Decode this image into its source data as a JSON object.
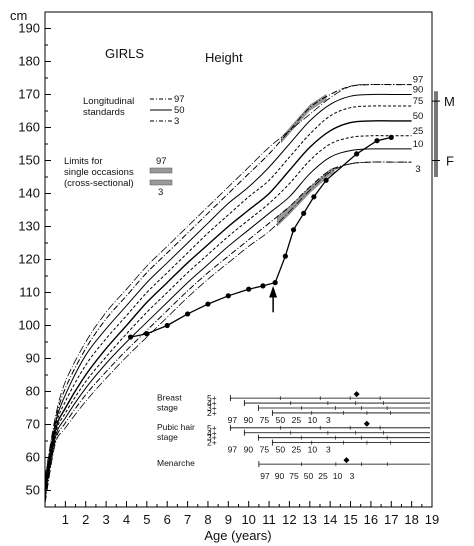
{
  "chart_data": {
    "type": "line",
    "title": "Height",
    "panel_label": "GIRLS",
    "xlabel": "Age (years)",
    "ylabel": "cm",
    "xlim": [
      0,
      19
    ],
    "ylim": [
      45,
      195
    ],
    "x_ticks": [
      1,
      2,
      3,
      4,
      5,
      6,
      7,
      8,
      9,
      10,
      11,
      12,
      13,
      14,
      15,
      16,
      17,
      18,
      19
    ],
    "y_ticks": [
      50,
      60,
      70,
      80,
      90,
      100,
      110,
      120,
      130,
      140,
      150,
      160,
      170,
      180,
      190
    ],
    "grid": false,
    "legend": {
      "longitudinal_label": "Longitudinal standards",
      "longitudinal_lines": [
        "97",
        "50",
        "3"
      ],
      "cross_label": "Limits for single occasions (cross-sectional)",
      "cross_top": "97",
      "cross_bottom": "3"
    },
    "centile_labels": [
      "97",
      "90",
      "75",
      "50",
      "25",
      "10",
      "3"
    ],
    "centiles": [
      {
        "name": "97",
        "x": [
          0,
          0.5,
          1,
          2,
          3,
          4,
          5,
          6,
          7,
          8,
          9,
          10,
          11,
          12,
          13,
          14,
          15,
          16,
          17,
          18
        ],
        "values": [
          53,
          71,
          81,
          93,
          102,
          109,
          116,
          122,
          128,
          134,
          140,
          146,
          152,
          159,
          166,
          170,
          172.5,
          173,
          173,
          173
        ]
      },
      {
        "name": "90",
        "x": [
          0,
          0.5,
          1,
          2,
          3,
          4,
          5,
          6,
          7,
          8,
          9,
          10,
          11,
          12,
          13,
          14,
          15,
          16,
          17,
          18
        ],
        "values": [
          52,
          70,
          79,
          91,
          99,
          106,
          113,
          119,
          125,
          131,
          137,
          142,
          148,
          155,
          162,
          167,
          169.5,
          170,
          170,
          170
        ]
      },
      {
        "name": "75",
        "x": [
          0,
          0.5,
          1,
          2,
          3,
          4,
          5,
          6,
          7,
          8,
          9,
          10,
          11,
          12,
          13,
          14,
          15,
          16,
          17,
          18
        ],
        "values": [
          51,
          69,
          77,
          88,
          96,
          103,
          110,
          116,
          122,
          128,
          133.5,
          139,
          144,
          151,
          158,
          163.5,
          166,
          166.5,
          166.5,
          166.5
        ]
      },
      {
        "name": "50",
        "x": [
          0,
          0.5,
          1,
          2,
          3,
          4,
          5,
          6,
          7,
          8,
          9,
          10,
          11,
          12,
          13,
          14,
          15,
          16,
          17,
          18
        ],
        "values": [
          50,
          68,
          75,
          85,
          93,
          100,
          107,
          113,
          119,
          124.5,
          130,
          135,
          140,
          147,
          154,
          159,
          161.5,
          162,
          162,
          162
        ]
      },
      {
        "name": "25",
        "x": [
          0,
          0.5,
          1,
          2,
          3,
          4,
          5,
          6,
          7,
          8,
          9,
          10,
          11,
          12,
          13,
          14,
          15,
          16,
          17,
          18
        ],
        "values": [
          49,
          67,
          73.5,
          83,
          90.5,
          97.5,
          104,
          110,
          116,
          121.5,
          127,
          132,
          137,
          143,
          150,
          155,
          157,
          157.5,
          157.5,
          157.5
        ]
      },
      {
        "name": "10",
        "x": [
          0,
          0.5,
          1,
          2,
          3,
          4,
          5,
          6,
          7,
          8,
          9,
          10,
          11,
          12,
          13,
          14,
          15,
          16,
          17,
          18
        ],
        "values": [
          48,
          66,
          72,
          81,
          88.5,
          95,
          101,
          107,
          113,
          118.5,
          124,
          129,
          134,
          139,
          146,
          151,
          153,
          153.5,
          153.5,
          153.5
        ]
      },
      {
        "name": "3",
        "x": [
          0,
          0.5,
          1,
          2,
          3,
          4,
          5,
          6,
          7,
          8,
          9,
          10,
          11,
          12,
          13,
          14,
          15,
          16,
          17,
          18
        ],
        "values": [
          47,
          65,
          70.5,
          79,
          86,
          92.5,
          98.5,
          104.5,
          110.5,
          116,
          121,
          126,
          131,
          136,
          142,
          147,
          149,
          149.5,
          149.5,
          149.5
        ]
      }
    ],
    "cross_sectional_limits": [
      {
        "name": "97",
        "x": [
          0,
          0.5,
          1,
          2,
          3,
          4,
          5,
          6,
          7,
          8,
          9,
          10,
          11,
          12,
          13,
          14,
          15,
          16,
          17,
          18
        ],
        "values": [
          54,
          72,
          83,
          95,
          104,
          111,
          118,
          124,
          130,
          136,
          142,
          148,
          154,
          159,
          164,
          169,
          172.5,
          173,
          173,
          173
        ]
      },
      {
        "name": "3",
        "x": [
          0,
          0.5,
          1,
          2,
          3,
          4,
          5,
          6,
          7,
          8,
          9,
          10,
          11,
          12,
          13,
          14,
          15,
          16,
          17,
          18
        ],
        "values": [
          46,
          64,
          69,
          77,
          84,
          90.5,
          96.5,
          102.5,
          108.5,
          114,
          119,
          124,
          128.5,
          134.5,
          141,
          146.5,
          149,
          149.5,
          149.5,
          149.5
        ]
      }
    ],
    "patient_series": {
      "name": "patient",
      "x": [
        4.2,
        5.0,
        6.0,
        7.0,
        8.0,
        9.0,
        10.0,
        10.7,
        11.3,
        11.8,
        12.2,
        12.7,
        13.2,
        13.8,
        15.3,
        16.3,
        17.0
      ],
      "values": [
        96.5,
        97.5,
        100,
        103.5,
        106.5,
        109,
        111,
        112,
        113,
        121,
        129,
        134,
        139,
        144,
        152,
        156,
        157
      ]
    },
    "treatment_arrow_age": 11.2,
    "parent_heights": {
      "M": 168,
      "F": 150
    },
    "puberty_rows": [
      {
        "name": "Breast stage",
        "stages": [
          "5+",
          "4+",
          "3+",
          "2+"
        ],
        "centile_labels": [
          "97",
          "90",
          "75",
          "50",
          "25",
          "10",
          "3"
        ],
        "marker_age": 15.3
      },
      {
        "name": "Pubic hair stage",
        "stages": [
          "5+",
          "4+",
          "3+",
          "2+"
        ],
        "centile_labels": [
          "97",
          "90",
          "75",
          "50",
          "25",
          "10",
          "3"
        ],
        "marker_age": 15.8
      },
      {
        "name": "Menarche",
        "stages": [],
        "centile_labels": [
          "97",
          "90",
          "75",
          "50",
          "25",
          "10",
          "3"
        ],
        "marker_age": 14.8
      }
    ]
  }
}
